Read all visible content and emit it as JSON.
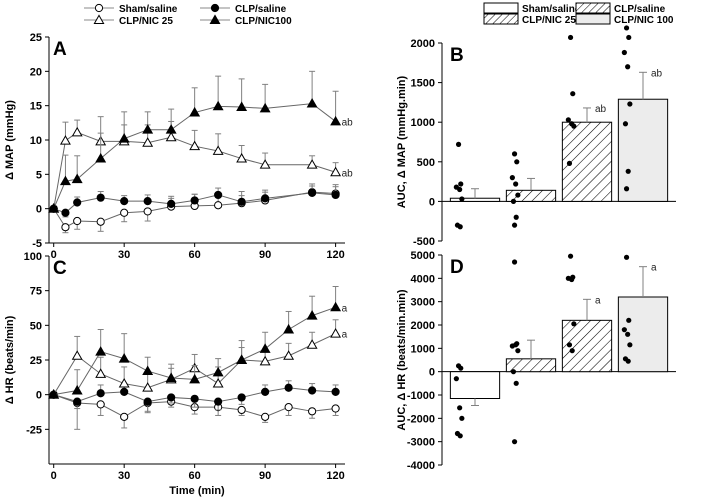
{
  "chart_data": [
    {
      "id": "A",
      "type": "line",
      "panel_label": "A",
      "xlabel": "",
      "ylabel": "Δ MAP (mmHg)",
      "xlim": [
        -2,
        124
      ],
      "ylim": [
        -5,
        25
      ],
      "xticks": [
        0,
        30,
        60,
        90,
        120
      ],
      "yticks": [
        -5,
        0,
        5,
        10,
        15,
        20,
        25
      ],
      "x": [
        0,
        5,
        10,
        20,
        30,
        40,
        50,
        60,
        70,
        80,
        90,
        100,
        110,
        120
      ],
      "series": [
        {
          "name": "Sham/saline",
          "marker": "circle-open",
          "values": [
            0,
            -2.7,
            -1.8,
            -1.9,
            -0.6,
            -0.4,
            0.3,
            0.4,
            0.5,
            0.8,
            1.2,
            2.4,
            2.2
          ],
          "x": [
            0,
            5,
            10,
            20,
            30,
            40,
            50,
            60,
            70,
            80,
            90,
            110,
            120
          ],
          "err": [
            0,
            0.8,
            1.2,
            1.4,
            1.3,
            1.4,
            1.5,
            1.7,
            1.6,
            1.7,
            1.5,
            1.2,
            1.3
          ]
        },
        {
          "name": "CLP/saline",
          "marker": "circle-filled",
          "values": [
            0,
            -0.6,
            0.9,
            1.6,
            1.1,
            1.1,
            0.7,
            1.2,
            2.0,
            1.0,
            1.5,
            2.3,
            2.0
          ],
          "x": [
            0,
            5,
            10,
            20,
            30,
            40,
            50,
            60,
            70,
            80,
            90,
            110,
            120
          ],
          "err": [
            0,
            0.6,
            0.8,
            0.9,
            0.8,
            0.9,
            0.8,
            0.9,
            1.0,
            0.9,
            0.9,
            1.0,
            1.2
          ]
        },
        {
          "name": "CLP/NIC 25",
          "marker": "triangle-open",
          "values": [
            0,
            9.9,
            11.1,
            9.8,
            9.8,
            9.6,
            10.4,
            9.1,
            8.4,
            7.3,
            6.4,
            6.4,
            5.3
          ],
          "x": [
            0,
            5,
            10,
            20,
            30,
            40,
            50,
            60,
            70,
            80,
            90,
            110,
            120
          ],
          "err": [
            0,
            2.7,
            1.8,
            3.6,
            2.4,
            2.6,
            2.3,
            2.3,
            2.5,
            1.9,
            1.7,
            1.3,
            1.4
          ]
        },
        {
          "name": "CLP/NIC100",
          "marker": "triangle-filled",
          "values": [
            0,
            4.0,
            4.3,
            7.3,
            10.2,
            11.5,
            11.5,
            14.0,
            14.9,
            14.8,
            14.6,
            15.3,
            12.7
          ],
          "x": [
            0,
            5,
            10,
            20,
            30,
            40,
            50,
            60,
            70,
            80,
            90,
            110,
            120
          ],
          "err": [
            0,
            3.8,
            3.4,
            3.7,
            3.9,
            2.6,
            3.0,
            3.6,
            4.4,
            4.1,
            3.5,
            4.7,
            4.4
          ]
        }
      ],
      "annotations": [
        {
          "text": "ab",
          "x": 120,
          "y": 12.7
        },
        {
          "text": "ab",
          "x": 120,
          "y": 5.3
        }
      ]
    },
    {
      "id": "B",
      "type": "bar",
      "panel_label": "B",
      "ylabel": "AUC, Δ MAP (mmHg.min)",
      "ylim": [
        -500,
        2000
      ],
      "yticks": [
        -500,
        0,
        500,
        1000,
        1500,
        2000
      ],
      "categories": [
        "Sham/saline",
        "CLP/saline",
        "CLP/NIC 25",
        "CLP/NIC 100"
      ],
      "values": [
        40,
        140,
        1000,
        1290
      ],
      "err": [
        120,
        150,
        180,
        340
      ],
      "points": [
        [
          720,
          220,
          180,
          150,
          30,
          -300,
          -320
        ],
        [
          600,
          500,
          300,
          220,
          80,
          0,
          -200,
          -300
        ],
        [
          2070,
          1360,
          1030,
          980,
          950,
          480
        ],
        [
          2190,
          2070,
          1880,
          1700,
          1230,
          980,
          380,
          160
        ]
      ],
      "annotations": [
        "",
        "",
        "ab",
        "ab"
      ]
    },
    {
      "id": "C",
      "type": "line",
      "panel_label": "C",
      "xlabel": "Time (min)",
      "ylabel": "Δ HR (beats/min)",
      "xlim": [
        -2,
        124
      ],
      "ylim": [
        -50,
        100
      ],
      "xticks": [
        0,
        30,
        60,
        90,
        120
      ],
      "yticks": [
        -25,
        0,
        25,
        50,
        75,
        100
      ],
      "x": [
        0,
        10,
        20,
        30,
        40,
        50,
        60,
        70,
        80,
        90,
        100,
        110,
        120
      ],
      "series": [
        {
          "name": "Sham/saline",
          "marker": "circle-open",
          "values": [
            0,
            -6,
            -7,
            -16,
            -6,
            -5,
            -9,
            -9,
            -11,
            -16,
            -9,
            -12,
            -10
          ],
          "err": [
            0,
            19,
            8,
            8,
            7,
            4,
            5,
            6,
            4,
            4,
            6,
            5,
            5
          ]
        },
        {
          "name": "CLP/saline",
          "marker": "circle-filled",
          "values": [
            0,
            -5,
            1,
            2,
            -5,
            -2,
            -3,
            -5,
            -2,
            2,
            5,
            3,
            2
          ],
          "err": [
            0,
            5,
            6,
            6,
            7,
            4,
            6,
            6,
            5,
            5,
            5,
            5,
            5
          ]
        },
        {
          "name": "CLP/NIC 25",
          "marker": "triangle-open",
          "values": [
            0,
            28,
            15,
            8,
            5,
            11,
            19,
            8,
            25,
            24,
            28,
            36,
            44
          ],
          "err": [
            0,
            14,
            12,
            12,
            10,
            8,
            10,
            12,
            9,
            8,
            9,
            9,
            10
          ]
        },
        {
          "name": "CLP/NIC100",
          "marker": "triangle-filled",
          "values": [
            0,
            3,
            31,
            26,
            17,
            12,
            11,
            16,
            25,
            33,
            47,
            57,
            63
          ],
          "err": [
            0,
            15,
            16,
            18,
            10,
            10,
            10,
            10,
            14,
            12,
            13,
            14,
            15
          ]
        }
      ],
      "annotations": [
        {
          "text": "a",
          "x": 120,
          "y": 63
        },
        {
          "text": "a",
          "x": 120,
          "y": 44
        }
      ]
    },
    {
      "id": "D",
      "type": "bar",
      "panel_label": "D",
      "ylabel": "AUC, Δ HR (beats/min.min)",
      "ylim": [
        -4000,
        5000
      ],
      "yticks": [
        -4000,
        -3000,
        -2000,
        -1000,
        0,
        1000,
        2000,
        3000,
        4000,
        5000
      ],
      "categories": [
        "Sham/saline",
        "CLP/saline",
        "CLP/NIC 25",
        "CLP/NIC 100"
      ],
      "values": [
        -1150,
        550,
        2200,
        3200
      ],
      "err": [
        300,
        800,
        900,
        1300
      ],
      "points": [
        [
          250,
          150,
          -300,
          -1550,
          -2000,
          -2650,
          -2750
        ],
        [
          4700,
          1200,
          1100,
          1150,
          900,
          0,
          -500,
          -3000
        ],
        [
          4950,
          4050,
          4000,
          3950,
          2050,
          1150,
          900
        ],
        [
          4900,
          2200,
          1800,
          1600,
          1150,
          550,
          450
        ]
      ],
      "annotations": [
        "",
        "",
        "a",
        "a"
      ]
    }
  ],
  "legend_left": [
    {
      "label": "Sham/saline",
      "marker": "circle-open"
    },
    {
      "label": "CLP/saline",
      "marker": "circle-filled"
    },
    {
      "label": "CLP/NIC 25",
      "marker": "triangle-open"
    },
    {
      "label": "CLP/NIC100",
      "marker": "triangle-filled"
    }
  ],
  "legend_right": [
    {
      "label": "Sham/saline",
      "fill": "white"
    },
    {
      "label": "CLP/saline",
      "fill": "hatch"
    },
    {
      "label": "CLP/NIC 25",
      "fill": "hatch"
    },
    {
      "label": "CLP/NIC 100",
      "fill": "gray"
    }
  ],
  "colors": {
    "ink": "#000000",
    "gray_bar": "#ececec",
    "error_bar": "#808080"
  }
}
